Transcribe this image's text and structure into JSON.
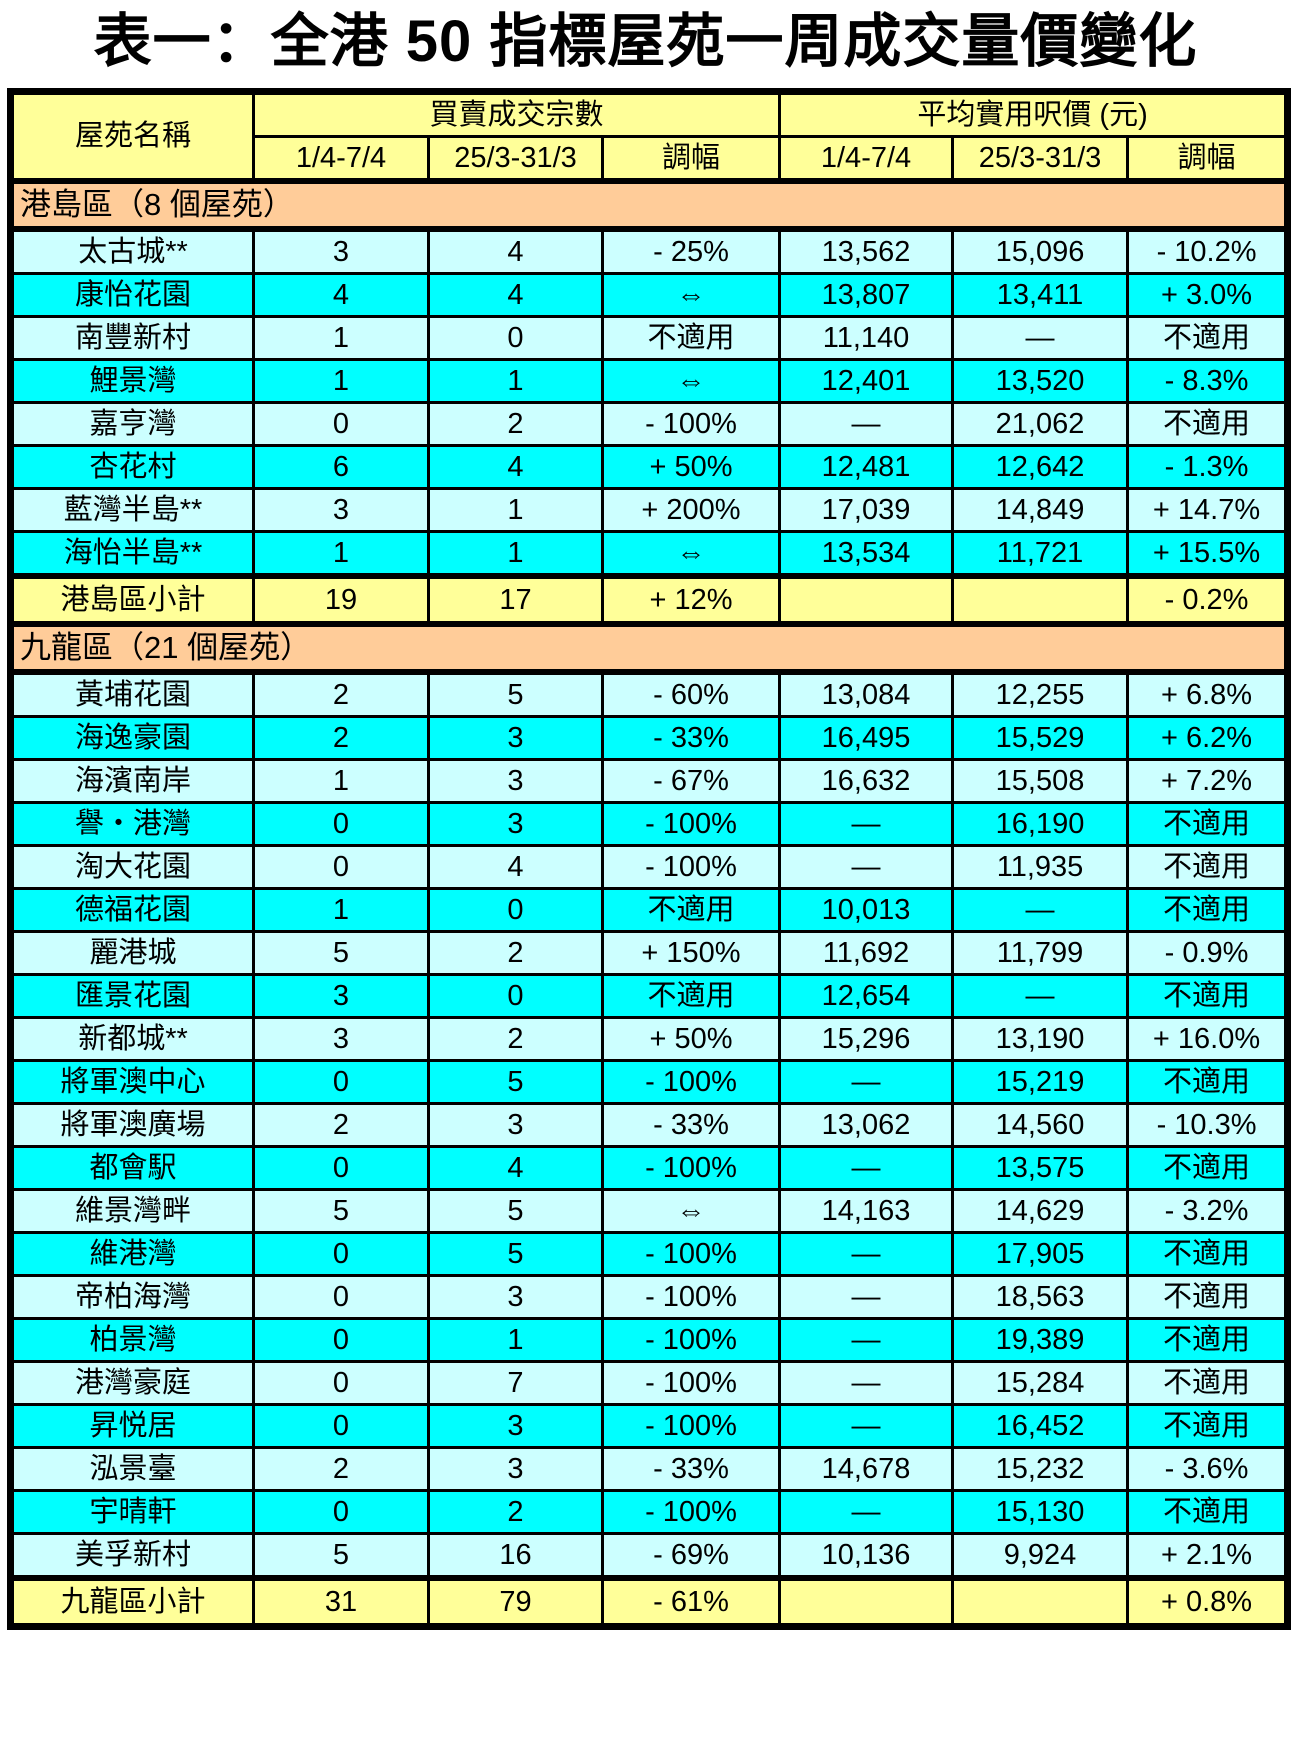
{
  "page_title": "表一：全港 50 指標屋苑一周成交量價變化",
  "colors": {
    "header_bg": "#FFFF99",
    "section_bg": "#FFCC99",
    "row_light": "#CCFFFF",
    "row_bright": "#00FFFF",
    "subtotal_bg": "#FFFF99",
    "border": "#000000",
    "page_bg": "#FFFFFF"
  },
  "table": {
    "header": {
      "estate_name": "屋苑名稱",
      "transactions_group": "買賣成交宗數",
      "price_group": "平均實用呎價 (元)",
      "period_current": "1/4-7/4",
      "period_previous": "25/3-31/3",
      "change": "調幅"
    },
    "sections": [
      {
        "title": "港島區（8 個屋苑）",
        "rows": [
          {
            "name": "太古城**",
            "vol_cur": "3",
            "vol_prev": "4",
            "vol_chg": "- 25%",
            "price_cur": "13,562",
            "price_prev": "15,096",
            "price_chg": "- 10.2%"
          },
          {
            "name": "康怡花園",
            "vol_cur": "4",
            "vol_prev": "4",
            "vol_chg": "⇔",
            "price_cur": "13,807",
            "price_prev": "13,411",
            "price_chg": "+ 3.0%"
          },
          {
            "name": "南豐新村",
            "vol_cur": "1",
            "vol_prev": "0",
            "vol_chg": "不適用",
            "price_cur": "11,140",
            "price_prev": "—",
            "price_chg": "不適用"
          },
          {
            "name": "鯉景灣",
            "vol_cur": "1",
            "vol_prev": "1",
            "vol_chg": "⇔",
            "price_cur": "12,401",
            "price_prev": "13,520",
            "price_chg": "- 8.3%"
          },
          {
            "name": "嘉亨灣",
            "vol_cur": "0",
            "vol_prev": "2",
            "vol_chg": "- 100%",
            "price_cur": "—",
            "price_prev": "21,062",
            "price_chg": "不適用"
          },
          {
            "name": "杏花村",
            "vol_cur": "6",
            "vol_prev": "4",
            "vol_chg": "+ 50%",
            "price_cur": "12,481",
            "price_prev": "12,642",
            "price_chg": "- 1.3%"
          },
          {
            "name": "藍灣半島**",
            "vol_cur": "3",
            "vol_prev": "1",
            "vol_chg": "+ 200%",
            "price_cur": "17,039",
            "price_prev": "14,849",
            "price_chg": "+ 14.7%"
          },
          {
            "name": "海怡半島**",
            "vol_cur": "1",
            "vol_prev": "1",
            "vol_chg": "⇔",
            "price_cur": "13,534",
            "price_prev": "11,721",
            "price_chg": "+ 15.5%"
          }
        ],
        "subtotal": {
          "name": "港島區小計",
          "vol_cur": "19",
          "vol_prev": "17",
          "vol_chg": "+ 12%",
          "price_cur": "",
          "price_prev": "",
          "price_chg": "- 0.2%"
        }
      },
      {
        "title": "九龍區（21 個屋苑）",
        "rows": [
          {
            "name": "黃埔花園",
            "vol_cur": "2",
            "vol_prev": "5",
            "vol_chg": "- 60%",
            "price_cur": "13,084",
            "price_prev": "12,255",
            "price_chg": "+ 6.8%"
          },
          {
            "name": "海逸豪園",
            "vol_cur": "2",
            "vol_prev": "3",
            "vol_chg": "- 33%",
            "price_cur": "16,495",
            "price_prev": "15,529",
            "price_chg": "+ 6.2%"
          },
          {
            "name": "海濱南岸",
            "vol_cur": "1",
            "vol_prev": "3",
            "vol_chg": "- 67%",
            "price_cur": "16,632",
            "price_prev": "15,508",
            "price_chg": "+ 7.2%"
          },
          {
            "name": "譽・港灣",
            "vol_cur": "0",
            "vol_prev": "3",
            "vol_chg": "- 100%",
            "price_cur": "—",
            "price_prev": "16,190",
            "price_chg": "不適用"
          },
          {
            "name": "淘大花園",
            "vol_cur": "0",
            "vol_prev": "4",
            "vol_chg": "- 100%",
            "price_cur": "—",
            "price_prev": "11,935",
            "price_chg": "不適用"
          },
          {
            "name": "德福花園",
            "vol_cur": "1",
            "vol_prev": "0",
            "vol_chg": "不適用",
            "price_cur": "10,013",
            "price_prev": "—",
            "price_chg": "不適用"
          },
          {
            "name": "麗港城",
            "vol_cur": "5",
            "vol_prev": "2",
            "vol_chg": "+ 150%",
            "price_cur": "11,692",
            "price_prev": "11,799",
            "price_chg": "- 0.9%"
          },
          {
            "name": "匯景花園",
            "vol_cur": "3",
            "vol_prev": "0",
            "vol_chg": "不適用",
            "price_cur": "12,654",
            "price_prev": "—",
            "price_chg": "不適用"
          },
          {
            "name": "新都城**",
            "vol_cur": "3",
            "vol_prev": "2",
            "vol_chg": "+ 50%",
            "price_cur": "15,296",
            "price_prev": "13,190",
            "price_chg": "+ 16.0%"
          },
          {
            "name": "將軍澳中心",
            "vol_cur": "0",
            "vol_prev": "5",
            "vol_chg": "- 100%",
            "price_cur": "—",
            "price_prev": "15,219",
            "price_chg": "不適用"
          },
          {
            "name": "將軍澳廣場",
            "vol_cur": "2",
            "vol_prev": "3",
            "vol_chg": "- 33%",
            "price_cur": "13,062",
            "price_prev": "14,560",
            "price_chg": "- 10.3%"
          },
          {
            "name": "都會駅",
            "vol_cur": "0",
            "vol_prev": "4",
            "vol_chg": "- 100%",
            "price_cur": "—",
            "price_prev": "13,575",
            "price_chg": "不適用"
          },
          {
            "name": "維景灣畔",
            "vol_cur": "5",
            "vol_prev": "5",
            "vol_chg": "⇔",
            "price_cur": "14,163",
            "price_prev": "14,629",
            "price_chg": "- 3.2%"
          },
          {
            "name": "維港灣",
            "vol_cur": "0",
            "vol_prev": "5",
            "vol_chg": "- 100%",
            "price_cur": "—",
            "price_prev": "17,905",
            "price_chg": "不適用"
          },
          {
            "name": "帝柏海灣",
            "vol_cur": "0",
            "vol_prev": "3",
            "vol_chg": "- 100%",
            "price_cur": "—",
            "price_prev": "18,563",
            "price_chg": "不適用"
          },
          {
            "name": "柏景灣",
            "vol_cur": "0",
            "vol_prev": "1",
            "vol_chg": "- 100%",
            "price_cur": "—",
            "price_prev": "19,389",
            "price_chg": "不適用"
          },
          {
            "name": "港灣豪庭",
            "vol_cur": "0",
            "vol_prev": "7",
            "vol_chg": "- 100%",
            "price_cur": "—",
            "price_prev": "15,284",
            "price_chg": "不適用"
          },
          {
            "name": "昇悦居",
            "vol_cur": "0",
            "vol_prev": "3",
            "vol_chg": "- 100%",
            "price_cur": "—",
            "price_prev": "16,452",
            "price_chg": "不適用"
          },
          {
            "name": "泓景臺",
            "vol_cur": "2",
            "vol_prev": "3",
            "vol_chg": "- 33%",
            "price_cur": "14,678",
            "price_prev": "15,232",
            "price_chg": "- 3.6%"
          },
          {
            "name": "宇晴軒",
            "vol_cur": "0",
            "vol_prev": "2",
            "vol_chg": "- 100%",
            "price_cur": "—",
            "price_prev": "15,130",
            "price_chg": "不適用"
          },
          {
            "name": "美孚新村",
            "vol_cur": "5",
            "vol_prev": "16",
            "vol_chg": "- 69%",
            "price_cur": "10,136",
            "price_prev": "9,924",
            "price_chg": "+ 2.1%"
          }
        ],
        "subtotal": {
          "name": "九龍區小計",
          "vol_cur": "31",
          "vol_prev": "79",
          "vol_chg": "- 61%",
          "price_cur": "",
          "price_prev": "",
          "price_chg": "+ 0.8%"
        }
      }
    ]
  }
}
